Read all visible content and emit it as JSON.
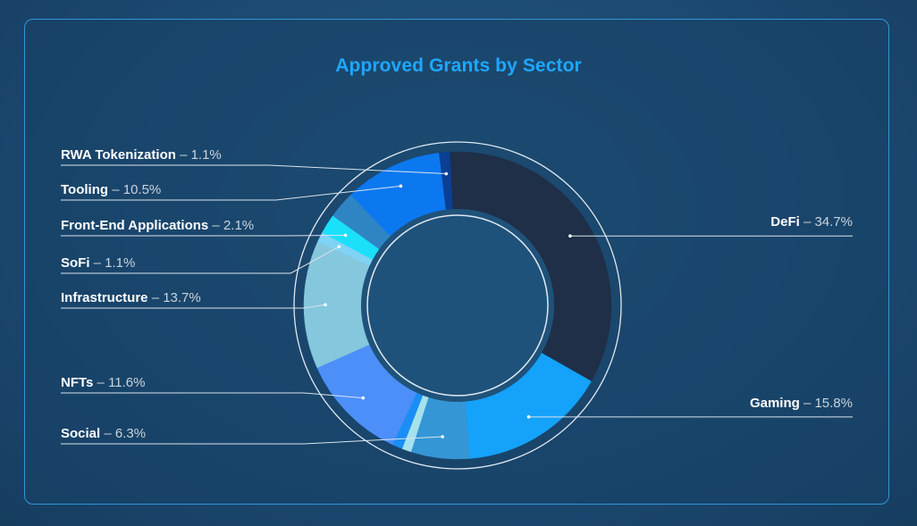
{
  "chart_data": {
    "type": "pie",
    "variant": "donut",
    "title": "Approved Grants by Sector",
    "unit": "%",
    "slices": [
      {
        "label": "DeFi",
        "value": 34.7,
        "color": "#1f2f48",
        "side": "right"
      },
      {
        "label": "Gaming",
        "value": 15.8,
        "color": "#14a2fb",
        "side": "right"
      },
      {
        "label": "Social",
        "value": 6.3,
        "color": "#3596d6",
        "side": "left"
      },
      {
        "label": "",
        "value": 1.0,
        "color": "#a6e2ee",
        "side": "none"
      },
      {
        "label": "",
        "value": 1.1,
        "color": "#1a8ef5",
        "side": "none"
      },
      {
        "label": "NFTs",
        "value": 11.6,
        "color": "#4c8ff9",
        "side": "left"
      },
      {
        "label": "Infrastructure",
        "value": 13.7,
        "color": "#85c7dc",
        "side": "left"
      },
      {
        "label": "SoFi",
        "value": 1.1,
        "color": "#7fd3f5",
        "side": "left"
      },
      {
        "label": "Front-End Applications",
        "value": 2.1,
        "color": "#1be0fa",
        "side": "left"
      },
      {
        "label": "",
        "value": 2.9,
        "color": "#2f85c4",
        "side": "none"
      },
      {
        "label": "Tooling",
        "value": 10.5,
        "color": "#0b78f0",
        "side": "left"
      },
      {
        "label": "RWA Tokenization",
        "value": 1.1,
        "color": "#0a3f94",
        "side": "left"
      }
    ]
  }
}
